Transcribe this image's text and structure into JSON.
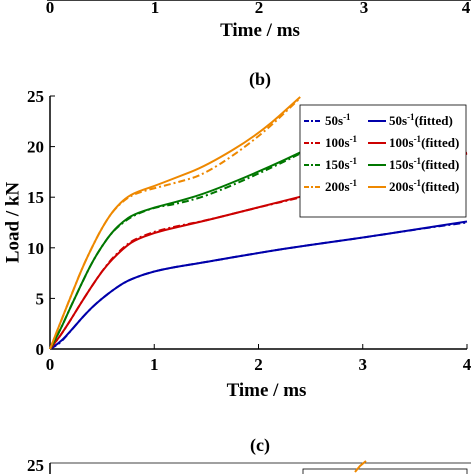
{
  "top_panel": {
    "x_ticks": [
      "0",
      "1",
      "2",
      "3",
      "4"
    ],
    "xlabel": "Time / ms"
  },
  "panel_b": {
    "label": "(b)"
  },
  "panel_c": {
    "label": "(c)",
    "y_tick_visible": "25"
  },
  "chart_data": {
    "type": "line",
    "title": "",
    "xlabel": "Time / ms",
    "ylabel": "Load / kN",
    "xlim": [
      0,
      4
    ],
    "ylim": [
      0,
      25
    ],
    "x_ticks": [
      "0",
      "1",
      "2",
      "3",
      "4"
    ],
    "y_ticks": [
      "0",
      "5",
      "10",
      "15",
      "20",
      "25"
    ],
    "grid": false,
    "legend_position": "top-right",
    "series": [
      {
        "name": "50s",
        "sup": "-1",
        "suffix": "",
        "style": "dashdot",
        "color": "#0000aa",
        "x": [
          0,
          0.1,
          0.2,
          0.3,
          0.4,
          0.5,
          0.6,
          0.7,
          0.8,
          1.0,
          1.2,
          1.5,
          2.0,
          2.5,
          3.0,
          3.5,
          4.0
        ],
        "y": [
          0,
          0.6,
          1.8,
          3.0,
          4.1,
          5.0,
          5.8,
          6.5,
          7.0,
          7.7,
          8.1,
          8.6,
          9.5,
          10.3,
          11.0,
          11.8,
          12.5
        ]
      },
      {
        "name": "50s",
        "sup": "-1",
        "suffix": "(fitted)",
        "style": "solid",
        "color": "#0000aa",
        "x": [
          0,
          0.1,
          0.2,
          0.3,
          0.4,
          0.5,
          0.6,
          0.7,
          0.8,
          1.0,
          1.2,
          1.5,
          2.0,
          2.5,
          3.0,
          3.5,
          4.0
        ],
        "y": [
          0,
          0.7,
          1.8,
          3.0,
          4.1,
          5.0,
          5.8,
          6.5,
          7.0,
          7.7,
          8.1,
          8.6,
          9.5,
          10.3,
          11.0,
          11.8,
          12.6
        ]
      },
      {
        "name": "100s",
        "sup": "-1",
        "suffix": "",
        "style": "dashdot",
        "color": "#cc0000",
        "x": [
          0,
          0.1,
          0.2,
          0.3,
          0.4,
          0.5,
          0.6,
          0.7,
          0.8,
          1.0,
          1.2,
          1.5,
          2.0,
          2.5,
          3.0,
          3.5,
          4.0
        ],
        "y": [
          0,
          1.3,
          2.9,
          4.6,
          6.2,
          7.7,
          9.0,
          10.0,
          10.8,
          11.6,
          12.1,
          12.7,
          14.0,
          15.2,
          16.5,
          17.9,
          19.3
        ]
      },
      {
        "name": "100s",
        "sup": "-1",
        "suffix": "(fitted)",
        "style": "solid",
        "color": "#cc0000",
        "x": [
          0,
          0.1,
          0.2,
          0.3,
          0.4,
          0.5,
          0.6,
          0.7,
          0.8,
          1.0,
          1.2,
          1.5,
          2.0,
          2.5,
          3.0,
          3.5,
          4.0
        ],
        "y": [
          0,
          1.3,
          2.9,
          4.6,
          6.2,
          7.7,
          8.9,
          9.9,
          10.7,
          11.5,
          12.0,
          12.7,
          14.0,
          15.3,
          16.6,
          18.0,
          19.4
        ]
      },
      {
        "name": "150s",
        "sup": "-1",
        "suffix": "",
        "style": "dashdot",
        "color": "#007700",
        "x": [
          0,
          0.1,
          0.2,
          0.3,
          0.4,
          0.5,
          0.6,
          0.7,
          0.8,
          1.0,
          1.2,
          1.5,
          2.0,
          2.5,
          3.0,
          3.2
        ],
        "y": [
          0,
          1.9,
          4.2,
          6.4,
          8.5,
          10.2,
          11.6,
          12.5,
          13.2,
          14.0,
          14.3,
          15.1,
          17.3,
          19.8,
          22.5,
          23.6
        ]
      },
      {
        "name": "150s",
        "sup": "-1",
        "suffix": "(fitted)",
        "style": "solid",
        "color": "#007700",
        "x": [
          0,
          0.1,
          0.2,
          0.3,
          0.4,
          0.5,
          0.6,
          0.7,
          0.8,
          1.0,
          1.2,
          1.5,
          2.0,
          2.5,
          3.0,
          3.2
        ],
        "y": [
          0,
          1.9,
          4.2,
          6.4,
          8.5,
          10.2,
          11.6,
          12.6,
          13.3,
          14.0,
          14.5,
          15.4,
          17.5,
          19.9,
          22.4,
          23.5
        ]
      },
      {
        "name": "200s",
        "sup": "-1",
        "suffix": "",
        "style": "dashdot",
        "color": "#ee8800",
        "x": [
          0,
          0.1,
          0.2,
          0.3,
          0.4,
          0.5,
          0.6,
          0.7,
          0.8,
          1.0,
          1.2,
          1.5,
          2.0,
          2.4
        ],
        "y": [
          0,
          2.6,
          5.2,
          7.8,
          10.0,
          12.0,
          13.6,
          14.6,
          15.3,
          15.9,
          16.4,
          17.3,
          20.9,
          24.8
        ]
      },
      {
        "name": "200s",
        "sup": "-1",
        "suffix": "(fitted)",
        "style": "solid",
        "color": "#ee8800",
        "x": [
          0,
          0.1,
          0.2,
          0.3,
          0.4,
          0.5,
          0.6,
          0.7,
          0.8,
          1.0,
          1.2,
          1.5,
          2.0,
          2.4
        ],
        "y": [
          0,
          2.6,
          5.2,
          7.8,
          10.0,
          12.0,
          13.6,
          14.7,
          15.4,
          16.1,
          16.9,
          18.1,
          21.2,
          24.9
        ]
      }
    ]
  }
}
